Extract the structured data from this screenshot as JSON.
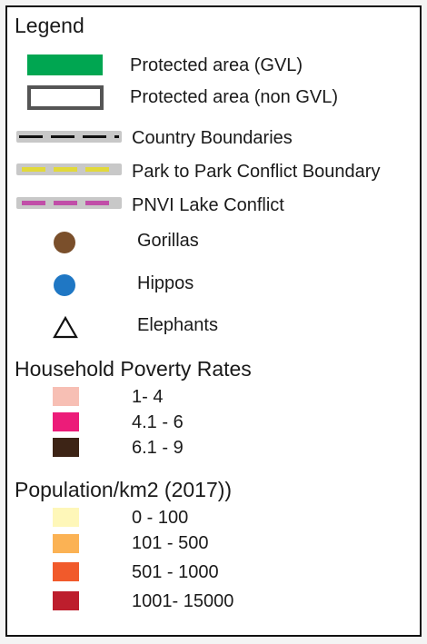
{
  "legend": {
    "title": "Legend",
    "items": [
      {
        "label": "Protected area (GVL)",
        "color": "#00a651",
        "icon": "filled-rect"
      },
      {
        "label": "Protected area (non GVL)",
        "color": "#555555",
        "icon": "outline-rect"
      },
      {
        "label": "Country Boundaries",
        "color": "#111111",
        "icon": "dashed-line"
      },
      {
        "label": "Park to Park Conflict Boundary",
        "color": "#e2d93a",
        "icon": "dashed-line"
      },
      {
        "label": "PNVI Lake Conflict",
        "color": "#c14ea8",
        "icon": "dashed-line"
      },
      {
        "label": "Gorillas",
        "color": "#7a4f2b",
        "icon": "circle"
      },
      {
        "label": "Hippos",
        "color": "#1f77c4",
        "icon": "circle"
      },
      {
        "label": "Elephants",
        "color": "#111111",
        "icon": "triangle-outline"
      }
    ]
  },
  "poverty": {
    "title": "Household Poverty Rates",
    "classes": [
      {
        "label": "1- 4",
        "color": "#f7bfb4"
      },
      {
        "label": "4.1 - 6",
        "color": "#ec1c79"
      },
      {
        "label": "6.1 - 9",
        "color": "#3d2416"
      }
    ]
  },
  "population": {
    "title": "Population/km2 (2017))",
    "classes": [
      {
        "label": "0 - 100",
        "color": "#fef7b9"
      },
      {
        "label": "101 - 500",
        "color": "#fbb254"
      },
      {
        "label": "501 - 1000",
        "color": "#f15a2b"
      },
      {
        "label": "1001- 15000",
        "color": "#bd1e2d"
      }
    ]
  }
}
